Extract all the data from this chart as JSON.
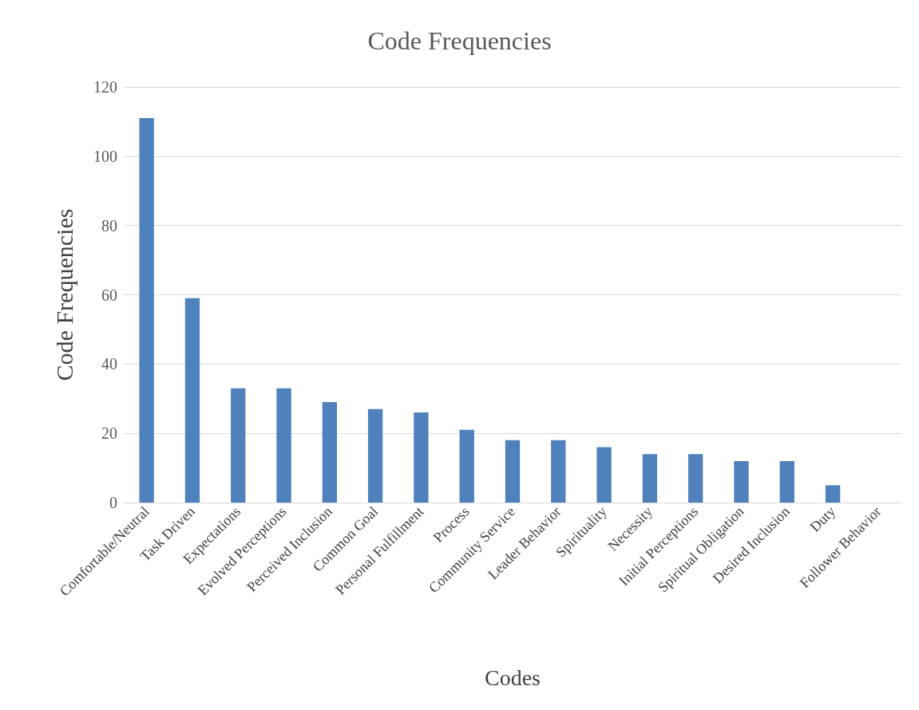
{
  "chart_data": {
    "type": "bar",
    "title": "Code Frequencies",
    "xlabel": "Codes",
    "ylabel": "Code Frequencies",
    "categories": [
      "Comfortable/Neutral",
      "Task Driven",
      "Expectations",
      "Evolved Perceptions",
      "Perceived Inclusion",
      "Common Goal",
      "Personal Fulfillment",
      "Process",
      "Community Service",
      "Leader Behavior",
      "Spirituality",
      "Necessity",
      "Initial Perceptions",
      "Spiritual Obligation",
      "Desired Inclusion",
      "Duty",
      "Follower Behavior"
    ],
    "values": [
      111,
      59,
      33,
      33,
      29,
      27,
      26,
      21,
      18,
      18,
      16,
      14,
      14,
      12,
      12,
      5,
      0
    ],
    "color": "#4f81bd",
    "ylim": [
      0,
      120
    ],
    "yticks": [
      0,
      20,
      40,
      60,
      80,
      100,
      120
    ],
    "grid": "y"
  }
}
